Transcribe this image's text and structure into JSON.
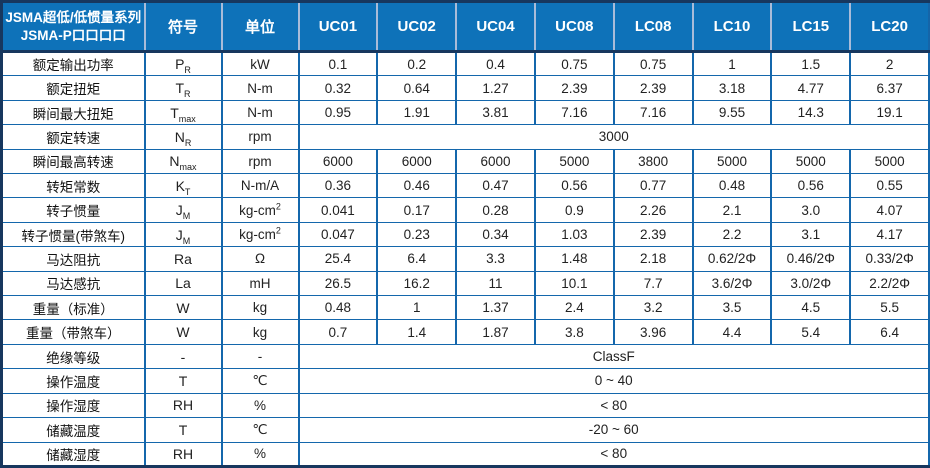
{
  "table": {
    "title_line1": "JSMA超低/低惯量系列",
    "title_line2": "JSMA-P口口口口",
    "col_headers": {
      "symbol": "符号",
      "unit": "单位",
      "models": [
        "UC01",
        "UC02",
        "UC04",
        "UC08",
        "LC08",
        "LC10",
        "LC15",
        "LC20"
      ]
    },
    "rows": [
      {
        "label": "额定输出功率",
        "symbol": "P",
        "symbol_sub": "R",
        "unit": "kW",
        "values": [
          "0.1",
          "0.2",
          "0.4",
          "0.75",
          "0.75",
          "1",
          "1.5",
          "2"
        ]
      },
      {
        "label": "额定扭矩",
        "symbol": "T",
        "symbol_sub": "R",
        "unit": "N-m",
        "values": [
          "0.32",
          "0.64",
          "1.27",
          "2.39",
          "2.39",
          "3.18",
          "4.77",
          "6.37"
        ]
      },
      {
        "label": "瞬间最大扭矩",
        "symbol": "T",
        "symbol_sub": "max",
        "unit": "N-m",
        "values": [
          "0.95",
          "1.91",
          "3.81",
          "7.16",
          "7.16",
          "9.55",
          "14.3",
          "19.1"
        ]
      },
      {
        "label": "额定转速",
        "symbol": "N",
        "symbol_sub": "R",
        "unit": "rpm",
        "span": "3000"
      },
      {
        "label": "瞬间最高转速",
        "symbol": "N",
        "symbol_sub": "max",
        "unit": "rpm",
        "values": [
          "6000",
          "6000",
          "6000",
          "5000",
          "3800",
          "5000",
          "5000",
          "5000"
        ]
      },
      {
        "label": "转矩常数",
        "symbol": "K",
        "symbol_sub": "T",
        "unit": "N-m/A",
        "values": [
          "0.36",
          "0.46",
          "0.47",
          "0.56",
          "0.77",
          "0.48",
          "0.56",
          "0.55"
        ]
      },
      {
        "label": "转子惯量",
        "symbol": "J",
        "symbol_sub": "M",
        "unit": "kg-cm",
        "unit_sup": "2",
        "values": [
          "0.041",
          "0.17",
          "0.28",
          "0.9",
          "2.26",
          "2.1",
          "3.0",
          "4.07"
        ]
      },
      {
        "label": "转子惯量(带煞车)",
        "symbol": "J",
        "symbol_sub": "M",
        "unit": "kg-cm",
        "unit_sup": "2",
        "values": [
          "0.047",
          "0.23",
          "0.34",
          "1.03",
          "2.39",
          "2.2",
          "3.1",
          "4.17"
        ]
      },
      {
        "label": "马达阻抗",
        "symbol": "Ra",
        "unit": "Ω",
        "values": [
          "25.4",
          "6.4",
          "3.3",
          "1.48",
          "2.18",
          "0.62/2Φ",
          "0.46/2Φ",
          "0.33/2Φ"
        ]
      },
      {
        "label": "马达感抗",
        "symbol": "La",
        "unit": "mH",
        "values": [
          "26.5",
          "16.2",
          "11",
          "10.1",
          "7.7",
          "3.6/2Φ",
          "3.0/2Φ",
          "2.2/2Φ"
        ]
      },
      {
        "label": "重量（标准）",
        "symbol": "W",
        "unit": "kg",
        "values": [
          "0.48",
          "1",
          "1.37",
          "2.4",
          "3.2",
          "3.5",
          "4.5",
          "5.5"
        ]
      },
      {
        "label": "重量（带煞车）",
        "symbol": "W",
        "unit": "kg",
        "values": [
          "0.7",
          "1.4",
          "1.87",
          "3.8",
          "3.96",
          "4.4",
          "5.4",
          "6.4"
        ]
      },
      {
        "label": "绝缘等级",
        "symbol": "-",
        "unit": "-",
        "span": "ClassF"
      },
      {
        "label": "操作温度",
        "symbol": "T",
        "unit": "℃",
        "span": "0 ~ 40"
      },
      {
        "label": "操作湿度",
        "symbol": "RH",
        "unit": "%",
        "span": "< 80"
      },
      {
        "label": "储藏温度",
        "symbol": "T",
        "unit": "℃",
        "span": "-20 ~ 60"
      },
      {
        "label": "储藏湿度",
        "symbol": "RH",
        "unit": "%",
        "span": "< 80"
      }
    ],
    "colors": {
      "header_bg": "#0e72b9",
      "header_text": "#ffffff",
      "header_divider": "#a9bcd9",
      "inner_border": "#1467ac",
      "outer_border": "#17375e",
      "cell_text": "#222222"
    }
  }
}
